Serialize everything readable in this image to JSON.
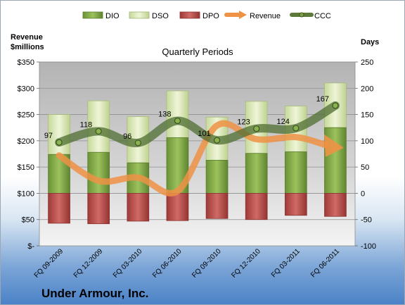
{
  "chart_data": {
    "type": "bar",
    "title": "Quarterly Periods",
    "company": "Under Armour, Inc.",
    "left_axis_label": "Revenue\n$millions",
    "right_axis_label": "Days",
    "left_ylim": [
      0,
      350
    ],
    "right_ylim": [
      -100,
      250
    ],
    "left_ticks": [
      0,
      50,
      100,
      150,
      200,
      250,
      300,
      350
    ],
    "left_tick_labels": [
      "$-",
      "$50",
      "$100",
      "$150",
      "$200",
      "$250",
      "$300",
      "$350"
    ],
    "right_ticks": [
      -100,
      -50,
      0,
      50,
      100,
      150,
      200,
      250
    ],
    "categories": [
      "FQ 09-2009",
      "FQ 12-2009",
      "FQ 03-2010",
      "FQ 06-2010",
      "FQ 09-2010",
      "FQ 12-2010",
      "FQ 03-2011",
      "FQ 06-2011"
    ],
    "grid": true,
    "legend_position": "top",
    "series": [
      {
        "name": "DIO",
        "type": "bar",
        "axis": "right",
        "color": "#7ea34a",
        "values": [
          74,
          78,
          58,
          106,
          63,
          76,
          79,
          125
        ]
      },
      {
        "name": "DSO",
        "type": "bar",
        "axis": "right",
        "color": "#d8e6b4",
        "values": [
          76,
          98,
          88,
          89,
          82,
          99,
          87,
          85
        ]
      },
      {
        "name": "DPO",
        "type": "bar",
        "axis": "right",
        "color": "#b84a48",
        "values": [
          -57,
          -58,
          -53,
          -52,
          -48,
          -50,
          -42,
          -44
        ]
      },
      {
        "name": "Revenue",
        "type": "line",
        "axis": "left",
        "color": "#ee9245",
        "values": [
          172,
          124,
          130,
          104,
          229,
          203,
          207,
          188
        ]
      },
      {
        "name": "CCC",
        "type": "line",
        "axis": "right",
        "color": "#4a6a2c",
        "values": [
          97,
          118,
          96,
          138,
          101,
          123,
          124,
          167
        ],
        "labels": [
          "97",
          "118",
          "96",
          "138",
          "101",
          "123",
          "124",
          "167"
        ]
      }
    ]
  }
}
